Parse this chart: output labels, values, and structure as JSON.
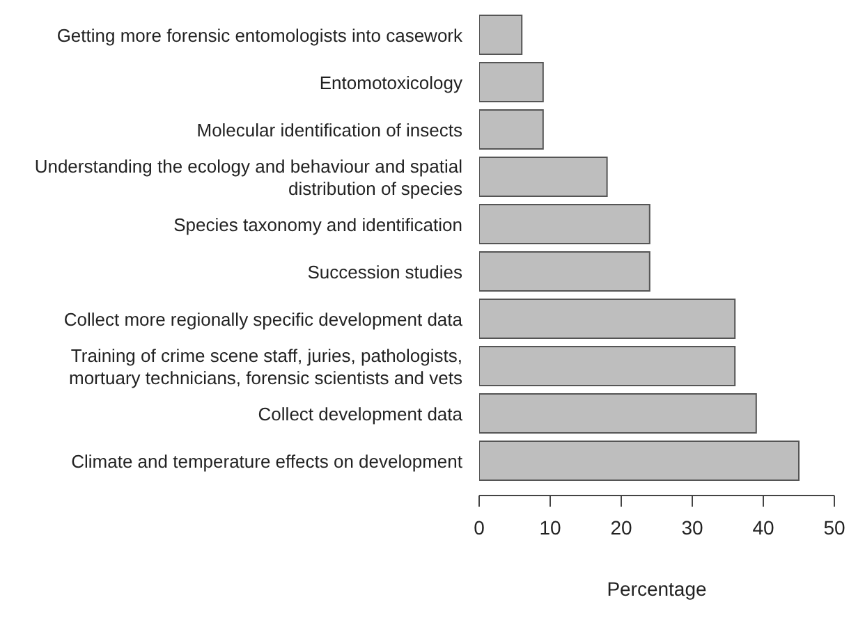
{
  "chart_data": {
    "type": "bar",
    "orientation": "horizontal",
    "xlabel": "Percentage",
    "categories": [
      "Getting more forensic entomologists into casework",
      "Entomotoxicology",
      "Molecular identification of insects",
      "Understanding the ecology and behaviour and spatial distribution of species",
      "Species taxonomy and identification",
      "Succession studies",
      "Collect more regionally specific development data",
      "Training of crime scene staff, juries, pathologists, mortuary technicians, forensic scientists and vets",
      "Collect development data",
      "Climate and temperature effects on development"
    ],
    "values": [
      6,
      9,
      9,
      18,
      24,
      24,
      36,
      36,
      39,
      45
    ],
    "color": "#bebebe",
    "xlim": [
      0,
      50
    ],
    "xticks": [
      0,
      10,
      20,
      30,
      40,
      50
    ],
    "grid": false,
    "legend": false
  }
}
